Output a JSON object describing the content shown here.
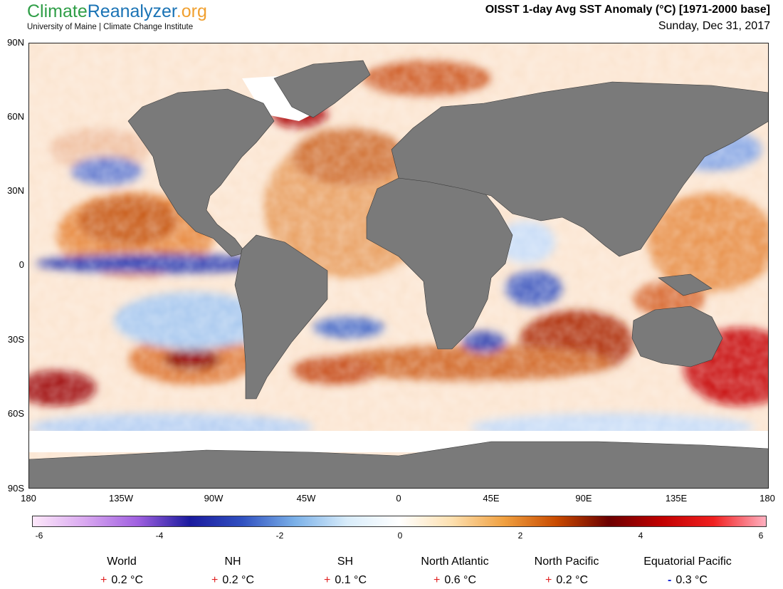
{
  "header": {
    "brand": {
      "part1": "Climate",
      "part2": "Reanalyzer",
      "part3": ".org"
    },
    "subtitle": "University of Maine | Climate Change Institute",
    "title": "OISST 1-day Avg SST Anomaly (°C) [1971-2000 base]",
    "date": "Sunday, Dec 31, 2017"
  },
  "map": {
    "lat_labels": [
      "90N",
      "60N",
      "30N",
      "0",
      "30S",
      "60S",
      "90S"
    ],
    "lon_labels": [
      "180",
      "135W",
      "90W",
      "45W",
      "0",
      "45E",
      "90E",
      "135E",
      "180"
    ],
    "land_color": "#7a7a7a",
    "ice_color": "#ffffff"
  },
  "colorbar": {
    "labels": [
      "-6",
      "-4",
      "-2",
      "0",
      "2",
      "4",
      "6"
    ],
    "range": [
      -6,
      6
    ],
    "colors": [
      "#fde8fa",
      "#d9a8f0",
      "#a060e0",
      "#1a1a9e",
      "#3050c0",
      "#7ab0e8",
      "#d8ecfa",
      "#ffffff",
      "#fde0b0",
      "#f0a040",
      "#c84a00",
      "#6b0000",
      "#c00000",
      "#f02020",
      "#ffb0c0"
    ]
  },
  "stats": [
    {
      "name": "World",
      "sign": "+",
      "value": "0.2 °C"
    },
    {
      "name": "NH",
      "sign": "+",
      "value": "0.2 °C"
    },
    {
      "name": "SH",
      "sign": "+",
      "value": "0.1 °C"
    },
    {
      "name": "North Atlantic",
      "sign": "+",
      "value": "0.6 °C"
    },
    {
      "name": "North Pacific",
      "sign": "+",
      "value": "0.2 °C"
    },
    {
      "name": "Equatorial Pacific",
      "sign": "-",
      "value": "0.3 °C"
    }
  ]
}
